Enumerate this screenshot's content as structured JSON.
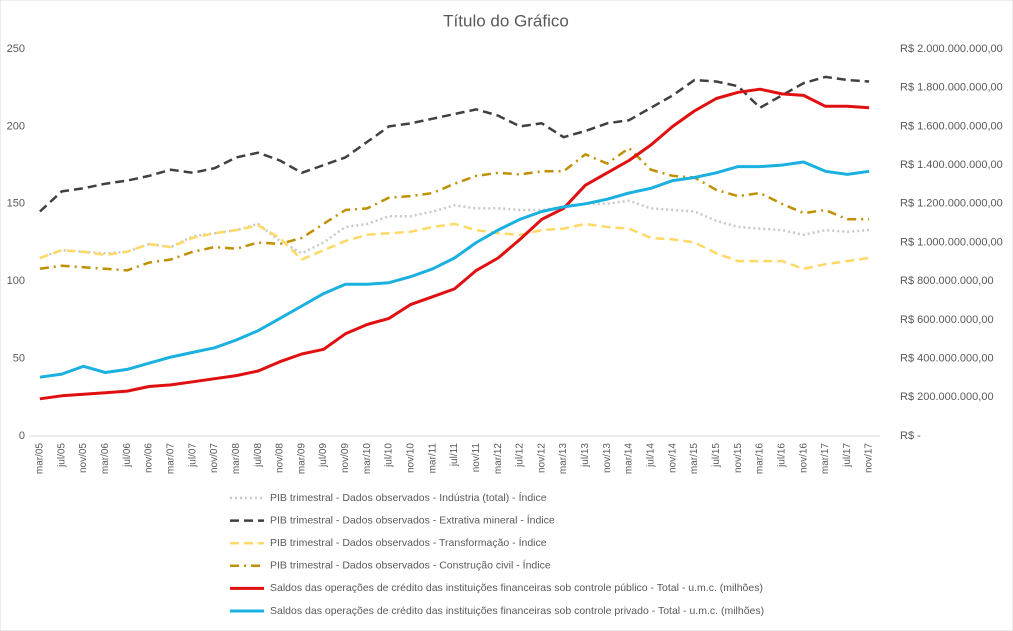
{
  "chart_data": {
    "type": "line",
    "title": "Título do Gráfico",
    "categories": [
      "mar/05",
      "jul/05",
      "nov/05",
      "mar/06",
      "jul/06",
      "nov/06",
      "mar/07",
      "jul/07",
      "nov/07",
      "mar/08",
      "jul/08",
      "nov/08",
      "mar/09",
      "jul/09",
      "nov/09",
      "mar/10",
      "jul/10",
      "nov/10",
      "mar/11",
      "jul/11",
      "nov/11",
      "mar/12",
      "jul/12",
      "nov/12",
      "mar/13",
      "jul/13",
      "nov/13",
      "mar/14",
      "jul/14",
      "nov/14",
      "mar/15",
      "jul/15",
      "nov/15",
      "mar/16",
      "jul/16",
      "nov/16",
      "mar/17",
      "jul/17",
      "nov/17"
    ],
    "ylim": [
      0,
      250
    ],
    "yticks": [
      0,
      50,
      100,
      150,
      200,
      250
    ],
    "y2lim": [
      0,
      2000000000
    ],
    "y2ticks": [
      {
        "value": 0,
        "label": "R$ -"
      },
      {
        "value": 200000000,
        "label": "R$ 200.000.000,00"
      },
      {
        "value": 400000000,
        "label": "R$ 400.000.000,00"
      },
      {
        "value": 600000000,
        "label": "R$ 600.000.000,00"
      },
      {
        "value": 800000000,
        "label": "R$ 800.000.000,00"
      },
      {
        "value": 1000000000,
        "label": "R$ 1.000.000.000,00"
      },
      {
        "value": 1200000000,
        "label": "R$ 1.200.000.000,00"
      },
      {
        "value": 1400000000,
        "label": "R$ 1.400.000.000,00"
      },
      {
        "value": 1600000000,
        "label": "R$ 1.600.000.000,00"
      },
      {
        "value": 1800000000,
        "label": "R$ 1.800.000.000,00"
      },
      {
        "value": 2000000000,
        "label": "R$ 2.000.000.000,00"
      }
    ],
    "grid": false,
    "legend": "bottom",
    "series": [
      {
        "name": "PIB trimestral - Dados observados - Indústria (total) - Índice",
        "color": "#c8c8c8",
        "style": "dotted",
        "axis": "y",
        "values": [
          115,
          120,
          119,
          118,
          119,
          124,
          122,
          129,
          131,
          133,
          137,
          126,
          118,
          125,
          135,
          137,
          142,
          142,
          145,
          149,
          147,
          147,
          146,
          146,
          148,
          150,
          150,
          152,
          147,
          146,
          145,
          139,
          135,
          134,
          133,
          130,
          133,
          132,
          133
        ]
      },
      {
        "name": "PIB trimestral - Dados observados - Extrativa mineral - Índice",
        "color": "#404040",
        "style": "dashed",
        "axis": "y",
        "values": [
          145,
          158,
          160,
          163,
          165,
          168,
          172,
          170,
          173,
          180,
          183,
          178,
          170,
          175,
          180,
          190,
          200,
          202,
          205,
          208,
          211,
          207,
          200,
          202,
          193,
          197,
          202,
          204,
          212,
          220,
          230,
          229,
          226,
          212,
          220,
          228,
          232,
          230,
          229
        ]
      },
      {
        "name": "PIB trimestral - Dados observados - Transformação - Índice",
        "color": "#ffd966",
        "style": "dashed",
        "axis": "y",
        "values": [
          115,
          120,
          119,
          117,
          119,
          124,
          122,
          128,
          131,
          133,
          136,
          128,
          114,
          120,
          126,
          130,
          131,
          132,
          135,
          137,
          133,
          131,
          130,
          133,
          134,
          137,
          135,
          134,
          128,
          127,
          125,
          118,
          113,
          113,
          113,
          108,
          111,
          113,
          115
        ]
      },
      {
        "name": "PIB trimestral - Dados observados - Construção civil - Índice",
        "color": "#bf9000",
        "style": "dashdot",
        "axis": "y",
        "values": [
          108,
          110,
          109,
          108,
          107,
          112,
          114,
          119,
          122,
          121,
          125,
          124,
          128,
          137,
          146,
          147,
          154,
          155,
          157,
          163,
          168,
          170,
          169,
          171,
          171,
          182,
          176,
          186,
          172,
          168,
          167,
          159,
          155,
          157,
          150,
          144,
          146,
          140,
          140
        ]
      },
      {
        "name": "Saldos das operações de crédito das instituições financeiras sob controle público - Total - u.m.c. (milhões)",
        "color": "#e01010",
        "style": "solid",
        "axis": "y2",
        "values": [
          192000000,
          208000000,
          216000000,
          224000000,
          232000000,
          256000000,
          264000000,
          280000000,
          296000000,
          312000000,
          336000000,
          384000000,
          424000000,
          448000000,
          528000000,
          576000000,
          608000000,
          680000000,
          720000000,
          760000000,
          856000000,
          920000000,
          1016000000,
          1120000000,
          1176000000,
          1296000000,
          1360000000,
          1424000000,
          1504000000,
          1600000000,
          1680000000,
          1744000000,
          1776000000,
          1792000000,
          1768000000,
          1760000000,
          1704000000,
          1704000000,
          1696000000
        ]
      },
      {
        "name": "Saldos das operações de crédito das instituições financeiras sob controle privado - Total - u.m.c. (milhões)",
        "color": "#1ab0e0",
        "style": "solid",
        "axis": "y2",
        "values": [
          304000000,
          320000000,
          360000000,
          328000000,
          344000000,
          376000000,
          408000000,
          432000000,
          456000000,
          496000000,
          544000000,
          608000000,
          672000000,
          736000000,
          784000000,
          784000000,
          792000000,
          824000000,
          864000000,
          920000000,
          1000000000,
          1064000000,
          1120000000,
          1160000000,
          1184000000,
          1200000000,
          1224000000,
          1256000000,
          1280000000,
          1320000000,
          1336000000,
          1360000000,
          1392000000,
          1392000000,
          1400000000,
          1416000000,
          1368000000,
          1352000000,
          1368000000
        ]
      }
    ]
  }
}
